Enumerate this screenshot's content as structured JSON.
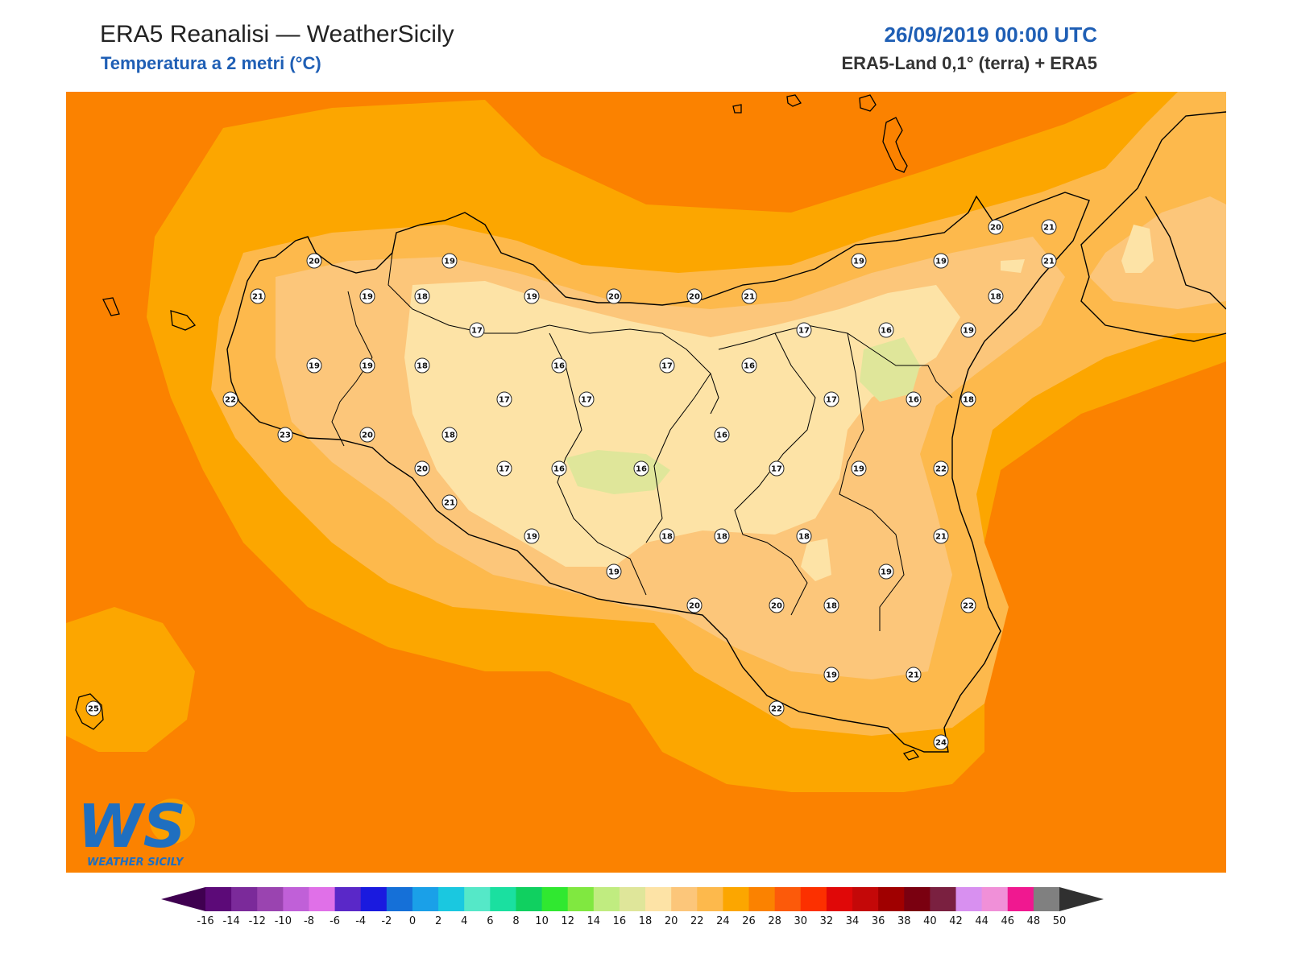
{
  "header": {
    "title": "ERA5 Reanalisi — WeatherSicily",
    "subtitle": "Temperatura a 2 metri (°C)",
    "datetime": "26/09/2019 00:00 UTC",
    "source": "ERA5-Land 0,1° (terra) + ERA5"
  },
  "logo": {
    "letters": "WS",
    "name": "WEATHER SICILY"
  },
  "colors": {
    "c_16": "#fde3a6",
    "c_18": "#fcc67a",
    "c_20": "#fdb94c",
    "c_22": "#fca600",
    "c_24": "#fb8200",
    "c_14": "#dfe69a"
  },
  "stations": [
    {
      "v": "20"
    },
    {
      "v": "19"
    },
    {
      "v": "21"
    },
    {
      "v": "19"
    },
    {
      "v": "18"
    },
    {
      "v": "19"
    },
    {
      "v": "20"
    },
    {
      "v": "20"
    },
    {
      "v": "21"
    },
    {
      "v": "19"
    },
    {
      "v": "19"
    },
    {
      "v": "20"
    },
    {
      "v": "21"
    },
    {
      "v": "21"
    },
    {
      "v": "17"
    },
    {
      "v": "17"
    },
    {
      "v": "16"
    },
    {
      "v": "19"
    },
    {
      "v": "18"
    },
    {
      "v": "19"
    },
    {
      "v": "19"
    },
    {
      "v": "18"
    },
    {
      "v": "16"
    },
    {
      "v": "17"
    },
    {
      "v": "16"
    },
    {
      "v": "22"
    },
    {
      "v": "17"
    },
    {
      "v": "17"
    },
    {
      "v": "17"
    },
    {
      "v": "16"
    },
    {
      "v": "18"
    },
    {
      "v": "23"
    },
    {
      "v": "20"
    },
    {
      "v": "18"
    },
    {
      "v": "16"
    },
    {
      "v": "20"
    },
    {
      "v": "17"
    },
    {
      "v": "16"
    },
    {
      "v": "16"
    },
    {
      "v": "17"
    },
    {
      "v": "19"
    },
    {
      "v": "22"
    },
    {
      "v": "21"
    },
    {
      "v": "19"
    },
    {
      "v": "18"
    },
    {
      "v": "18"
    },
    {
      "v": "18"
    },
    {
      "v": "21"
    },
    {
      "v": "19"
    },
    {
      "v": "19"
    },
    {
      "v": "20"
    },
    {
      "v": "20"
    },
    {
      "v": "18"
    },
    {
      "v": "22"
    },
    {
      "v": "19"
    },
    {
      "v": "21"
    },
    {
      "v": "22"
    },
    {
      "v": "25"
    },
    {
      "v": "24"
    }
  ],
  "colorbar": {
    "ticks": [
      "-16",
      "-14",
      "-12",
      "-10",
      "-8",
      "-6",
      "-4",
      "-2",
      "0",
      "2",
      "4",
      "6",
      "8",
      "10",
      "12",
      "14",
      "16",
      "18",
      "20",
      "22",
      "24",
      "26",
      "28",
      "30",
      "32",
      "34",
      "36",
      "38",
      "40",
      "42",
      "44",
      "46",
      "48",
      "50"
    ],
    "colors": [
      "#3f0050",
      "#5c0a78",
      "#7b2a9a",
      "#9a44b0",
      "#c060d8",
      "#e070e8",
      "#5a28c8",
      "#1a1adf",
      "#1570d8",
      "#1aa0e8",
      "#1ac8e0",
      "#55e8c8",
      "#1ae0a0",
      "#10d060",
      "#30e830",
      "#80e840",
      "#c0ec80",
      "#dfe69a",
      "#fde3a6",
      "#fcc67a",
      "#fdb94c",
      "#fca600",
      "#fb8200",
      "#fc5a0a",
      "#fc3000",
      "#e00808",
      "#c40808",
      "#a00000",
      "#7a0010",
      "#7a2040",
      "#d890f0",
      "#f090d8",
      "#f01890",
      "#808080",
      "#303030"
    ]
  }
}
